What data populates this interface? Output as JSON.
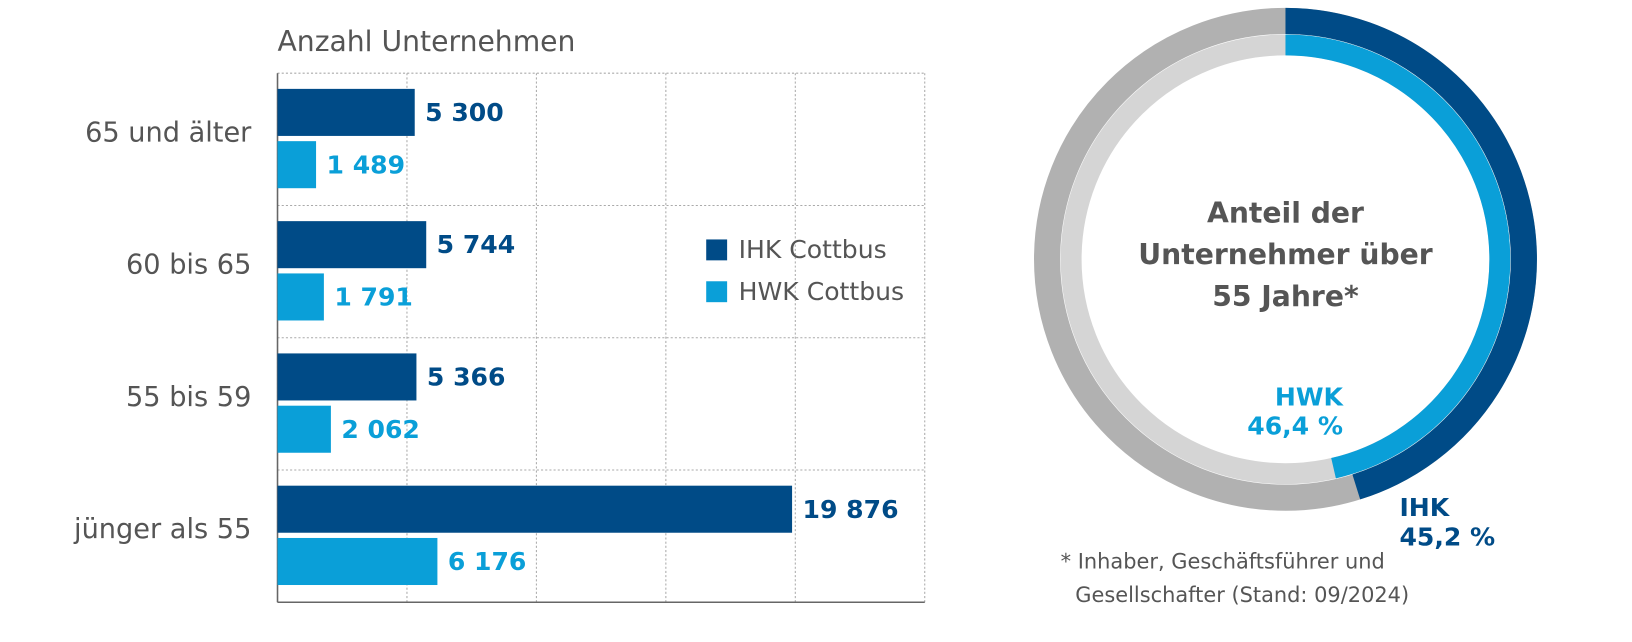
{
  "chart_data": [
    {
      "type": "barh",
      "title": "Anzahl Unternehmen",
      "categories": [
        "65 und älter",
        "60 bis 65",
        "55 bis 59",
        "jünger als 55"
      ],
      "series": [
        {
          "name": "IHK Cottbus",
          "color": "#004b87",
          "values": [
            5300,
            5744,
            5366,
            19876
          ],
          "value_labels": [
            "5 300",
            "5 744",
            "5 366",
            "19 876"
          ]
        },
        {
          "name": "HWK Cottbus",
          "color": "#0a9fd8",
          "values": [
            1489,
            1791,
            2062,
            6176
          ],
          "value_labels": [
            "1 489",
            "1 791",
            "2 062",
            "6 176"
          ]
        }
      ],
      "xlim": [
        0,
        25000
      ],
      "xticks": [
        0,
        5000,
        10000,
        15000,
        20000,
        25000
      ],
      "grid": true
    },
    {
      "type": "donut",
      "title": [
        "Anteil der",
        "Unternehmer über",
        "55 Jahre*"
      ],
      "series": [
        {
          "name": "IHK",
          "color": "#004b87",
          "rest_color": "#b1b1b1",
          "values": [
            45.2
          ],
          "value_labels": [
            "45,2 %"
          ]
        },
        {
          "name": "HWK",
          "color": "#0a9fd8",
          "rest_color": "#d5d5d5",
          "values": [
            46.4
          ],
          "value_labels": [
            "46,4 %"
          ]
        }
      ],
      "note": [
        "* Inhaber, Geschäftsführer und",
        "Gesellschafter (Stand: 09/2024)"
      ]
    }
  ]
}
